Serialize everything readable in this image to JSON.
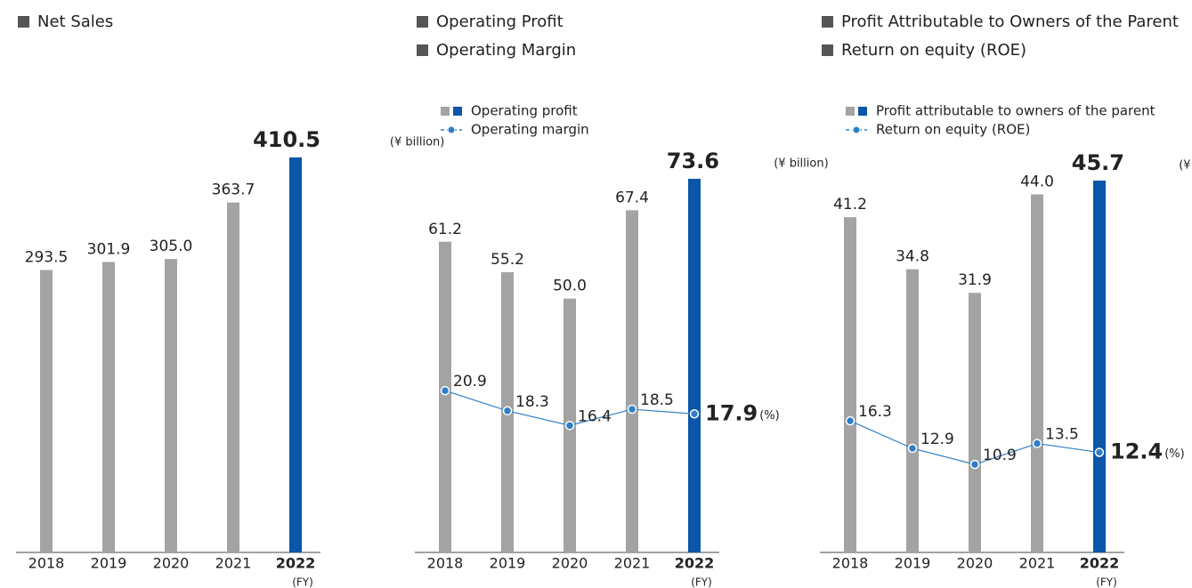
{
  "chart_data": [
    {
      "type": "bar",
      "title": "Net Sales",
      "categories": [
        "2018",
        "2019",
        "2020",
        "2021",
        "2022"
      ],
      "x_unit": "(FY)",
      "color": "#a3a3a3",
      "highlight_color": "#0a56a8",
      "series": [
        {
          "type": "bar",
          "unit": "(¥ billion)",
          "values": [
            293.5,
            301.9,
            305.0,
            363.7,
            410.5
          ],
          "value_labels": [
            "293.5",
            "301.9",
            "305.0",
            "363.7",
            "410.5"
          ]
        }
      ]
    },
    {
      "type": "combo",
      "title": "Operating Profit",
      "subtitle": "Operating Margin",
      "categories": [
        "2018",
        "2019",
        "2020",
        "2021",
        "2022"
      ],
      "x_unit": "(FY)",
      "color": "#a3a3a3",
      "highlight_color": "#0a56a8",
      "line_color": "#2f7fc8",
      "series": [
        {
          "type": "bar",
          "name": "Operating profit",
          "unit": "(¥ billion)",
          "values": [
            61.2,
            55.2,
            50.0,
            67.4,
            73.6
          ],
          "value_labels": [
            "61.2",
            "55.2",
            "50.0",
            "67.4",
            "73.6"
          ]
        },
        {
          "type": "line",
          "axis": "y2",
          "name": "Operating margin",
          "unit": "(%)",
          "values": [
            20.9,
            18.3,
            16.4,
            18.5,
            17.9
          ]
        }
      ]
    },
    {
      "type": "combo",
      "title": "Profit Attributable to Owners of the Parent",
      "subtitle": "Return on equity (ROE)",
      "categories": [
        "2018",
        "2019",
        "2020",
        "2021",
        "2022"
      ],
      "x_unit": "(FY)",
      "color": "#a3a3a3",
      "highlight_color": "#0a56a8",
      "line_color": "#2f7fc8",
      "series": [
        {
          "type": "bar",
          "name": "Profit attributable to owners of the parent",
          "unit": "(¥ billion)",
          "values": [
            41.2,
            34.8,
            31.9,
            44.0,
            45.7
          ],
          "value_labels": [
            "41.2",
            "34.8",
            "31.9",
            "44.0",
            "45.7"
          ]
        },
        {
          "type": "line",
          "axis": "y2",
          "name": "Return on equity (ROE)",
          "unit": "(%)",
          "values": [
            16.3,
            12.9,
            10.9,
            13.5,
            12.4
          ]
        }
      ]
    }
  ]
}
